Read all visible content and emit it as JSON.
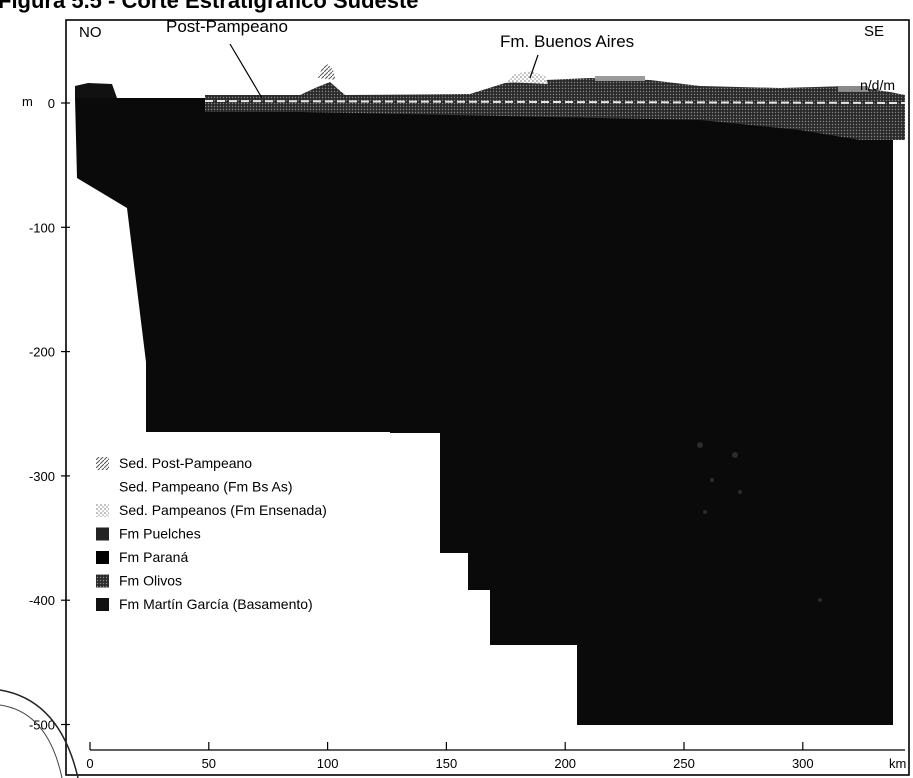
{
  "figure": {
    "title_fragment": "Figura 5.5 - Corte Estratigráfico Sudeste",
    "orientation_left": "NO",
    "orientation_right": "SE",
    "label_post_pampeano": "Post-Pampeano",
    "label_fm_buenos_aires": "Fm. Buenos Aires",
    "label_ndm": "n/d/m",
    "y_axis_unit": "m",
    "x_axis_unit": "km"
  },
  "axes": {
    "y_ticks": [
      "0",
      "-100",
      "-200",
      "-300",
      "-400",
      "-500"
    ],
    "x_ticks": [
      "0",
      "50",
      "100",
      "150",
      "200",
      "250",
      "300"
    ]
  },
  "legend": [
    {
      "label": "Sed. Post-Pampeano",
      "swatch": "hatched",
      "color": "#8a8a8a"
    },
    {
      "label": "Sed. Pampeano (Fm Bs As)",
      "swatch": "none",
      "color": "#ffffff"
    },
    {
      "label": "Sed. Pampeanos (Fm Ensenada)",
      "swatch": "dotted",
      "color": "#c4c4c4"
    },
    {
      "label": "Fm Puelches",
      "swatch": "solid",
      "color": "#222222"
    },
    {
      "label": "Fm Paraná",
      "swatch": "solid",
      "color": "#000000"
    },
    {
      "label": "Fm Olivos",
      "swatch": "textured",
      "color": "#3a3a3a"
    },
    {
      "label": "Fm Martín García (Basamento)",
      "swatch": "solid",
      "color": "#111111"
    }
  ],
  "colors": {
    "section_fill": "#0a0a0a",
    "surface_texture": "#6a6a6a",
    "water_line": "#e6e6e6"
  }
}
